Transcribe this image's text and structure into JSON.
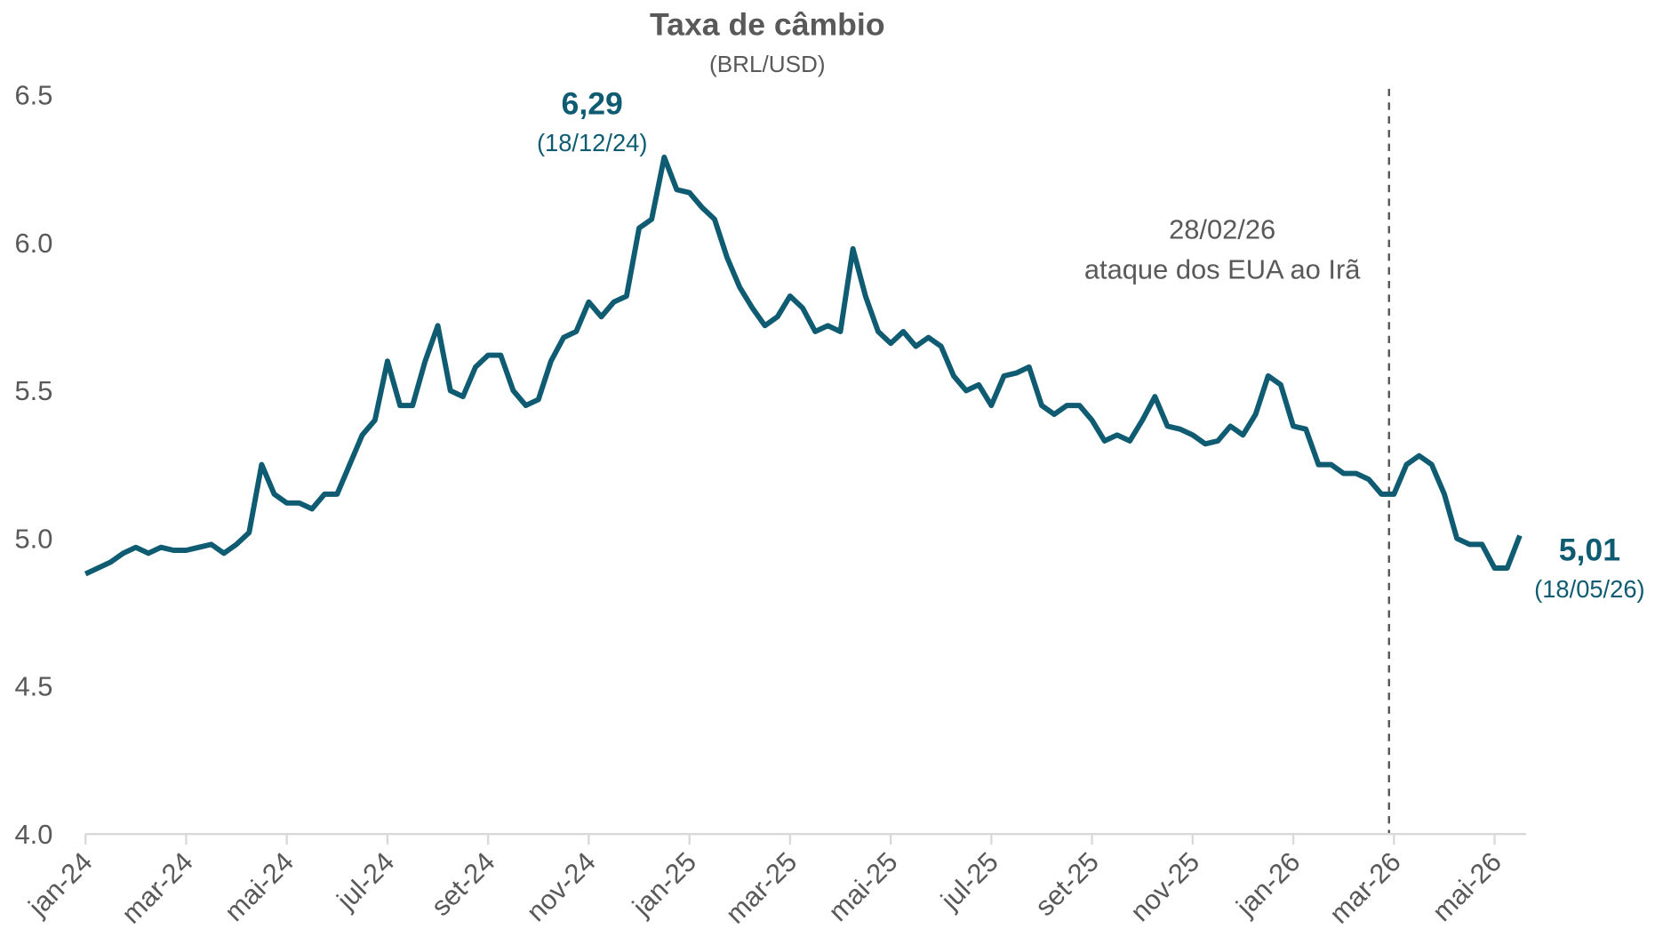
{
  "chart_data": {
    "type": "line",
    "title": "Taxa de câmbio",
    "subtitle": "(BRL/USD)",
    "categories": [
      "jan-24",
      null,
      null,
      null,
      null,
      null,
      null,
      null,
      "mar-24",
      null,
      null,
      null,
      null,
      null,
      null,
      null,
      "mai-24",
      null,
      null,
      null,
      null,
      null,
      null,
      null,
      "jul-24",
      null,
      null,
      null,
      null,
      null,
      null,
      null,
      "set-24",
      null,
      null,
      null,
      null,
      null,
      null,
      null,
      "nov-24",
      null,
      null,
      null,
      null,
      null,
      null,
      null,
      "jan-25",
      null,
      null,
      null,
      null,
      null,
      null,
      null,
      "mar-25",
      null,
      null,
      null,
      null,
      null,
      null,
      null,
      "mai-25",
      null,
      null,
      null,
      null,
      null,
      null,
      null,
      "jul-25",
      null,
      null,
      null,
      null,
      null,
      null,
      null,
      "set-25",
      null,
      null,
      null,
      null,
      null,
      null,
      null,
      "nov-25",
      null,
      null,
      null,
      null,
      null,
      null,
      null,
      "jan-26",
      null,
      null,
      null,
      null,
      null,
      null,
      null,
      "mar-26",
      null,
      null,
      null,
      null,
      null,
      null,
      null,
      "mai-26",
      null,
      null
    ],
    "series": [
      {
        "name": "BRL/USD",
        "color": "#0f5c72",
        "values": [
          4.88,
          4.9,
          4.92,
          4.95,
          4.97,
          4.95,
          4.97,
          4.96,
          4.96,
          4.97,
          4.98,
          4.95,
          4.98,
          5.02,
          5.25,
          5.15,
          5.12,
          5.12,
          5.1,
          5.15,
          5.15,
          5.25,
          5.35,
          5.4,
          5.6,
          5.45,
          5.45,
          5.6,
          5.72,
          5.5,
          5.48,
          5.58,
          5.62,
          5.62,
          5.5,
          5.45,
          5.47,
          5.6,
          5.68,
          5.7,
          5.8,
          5.75,
          5.8,
          5.82,
          6.05,
          6.08,
          6.29,
          6.18,
          6.17,
          6.12,
          6.08,
          5.95,
          5.85,
          5.78,
          5.72,
          5.75,
          5.82,
          5.78,
          5.7,
          5.72,
          5.7,
          5.98,
          5.82,
          5.7,
          5.66,
          5.7,
          5.65,
          5.68,
          5.65,
          5.55,
          5.5,
          5.52,
          5.45,
          5.55,
          5.56,
          5.58,
          5.45,
          5.42,
          5.45,
          5.45,
          5.4,
          5.33,
          5.35,
          5.33,
          5.4,
          5.48,
          5.38,
          5.37,
          5.35,
          5.32,
          5.33,
          5.38,
          5.35,
          5.42,
          5.55,
          5.52,
          5.38,
          5.37,
          5.25,
          5.25,
          5.22,
          5.22,
          5.2,
          5.15,
          5.15,
          5.25,
          5.28,
          5.25,
          5.15,
          5.0,
          4.98,
          4.98,
          4.9,
          4.9,
          5.01
        ]
      }
    ],
    "ylim": [
      4.0,
      6.5
    ],
    "yticks": [
      {
        "value": 4,
        "label": "4.0"
      },
      4.5,
      {
        "value": 5,
        "label": "5.0"
      },
      5.5,
      {
        "value": 6,
        "label": "6.0"
      },
      6.5
    ],
    "grid": false,
    "annotations": [
      {
        "text": "6,29",
        "date": "(18/12/24)"
      },
      {
        "text": "5,01",
        "date": "(18/05/26)"
      },
      {
        "text": "28/02/26",
        "date": "ataque dos EUA ao Irã"
      }
    ]
  }
}
